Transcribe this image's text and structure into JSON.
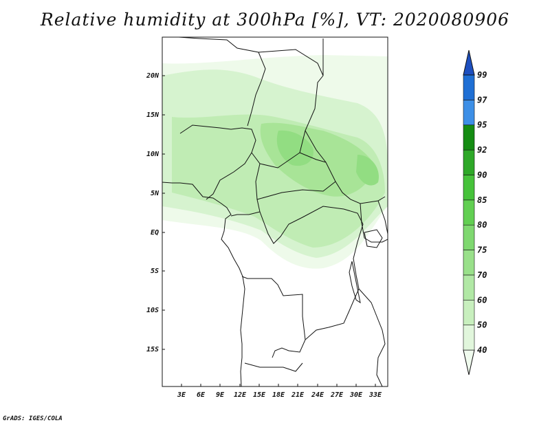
{
  "title": "Relative humidity at 300hPa [%], VT: 2020080906",
  "credit": "GrADS: IGES/COLA",
  "map": {
    "lat_labels": [
      "20N",
      "15N",
      "10N",
      "5N",
      "EQ",
      "5S",
      "10S",
      "15S"
    ],
    "lon_labels": [
      "3E",
      "6E",
      "9E",
      "12E",
      "15E",
      "18E",
      "21E",
      "24E",
      "27E",
      "30E",
      "33E"
    ],
    "extent": {
      "lon_min": 0,
      "lon_max": 35,
      "lat_min": -20,
      "lat_max": 24.5
    }
  },
  "colorbar": {
    "labels": [
      "40",
      "50",
      "60",
      "70",
      "75",
      "80",
      "85",
      "90",
      "92",
      "95",
      "97",
      "99"
    ],
    "colors": [
      "#f0fbee",
      "#e1f6dc",
      "#c8efbe",
      "#b1e8a5",
      "#99e08a",
      "#7fd870",
      "#62cf52",
      "#46c23a",
      "#2ea828",
      "#148c12",
      "#3d8fe6",
      "#1f6fd4",
      "#1d4fbf"
    ]
  }
}
